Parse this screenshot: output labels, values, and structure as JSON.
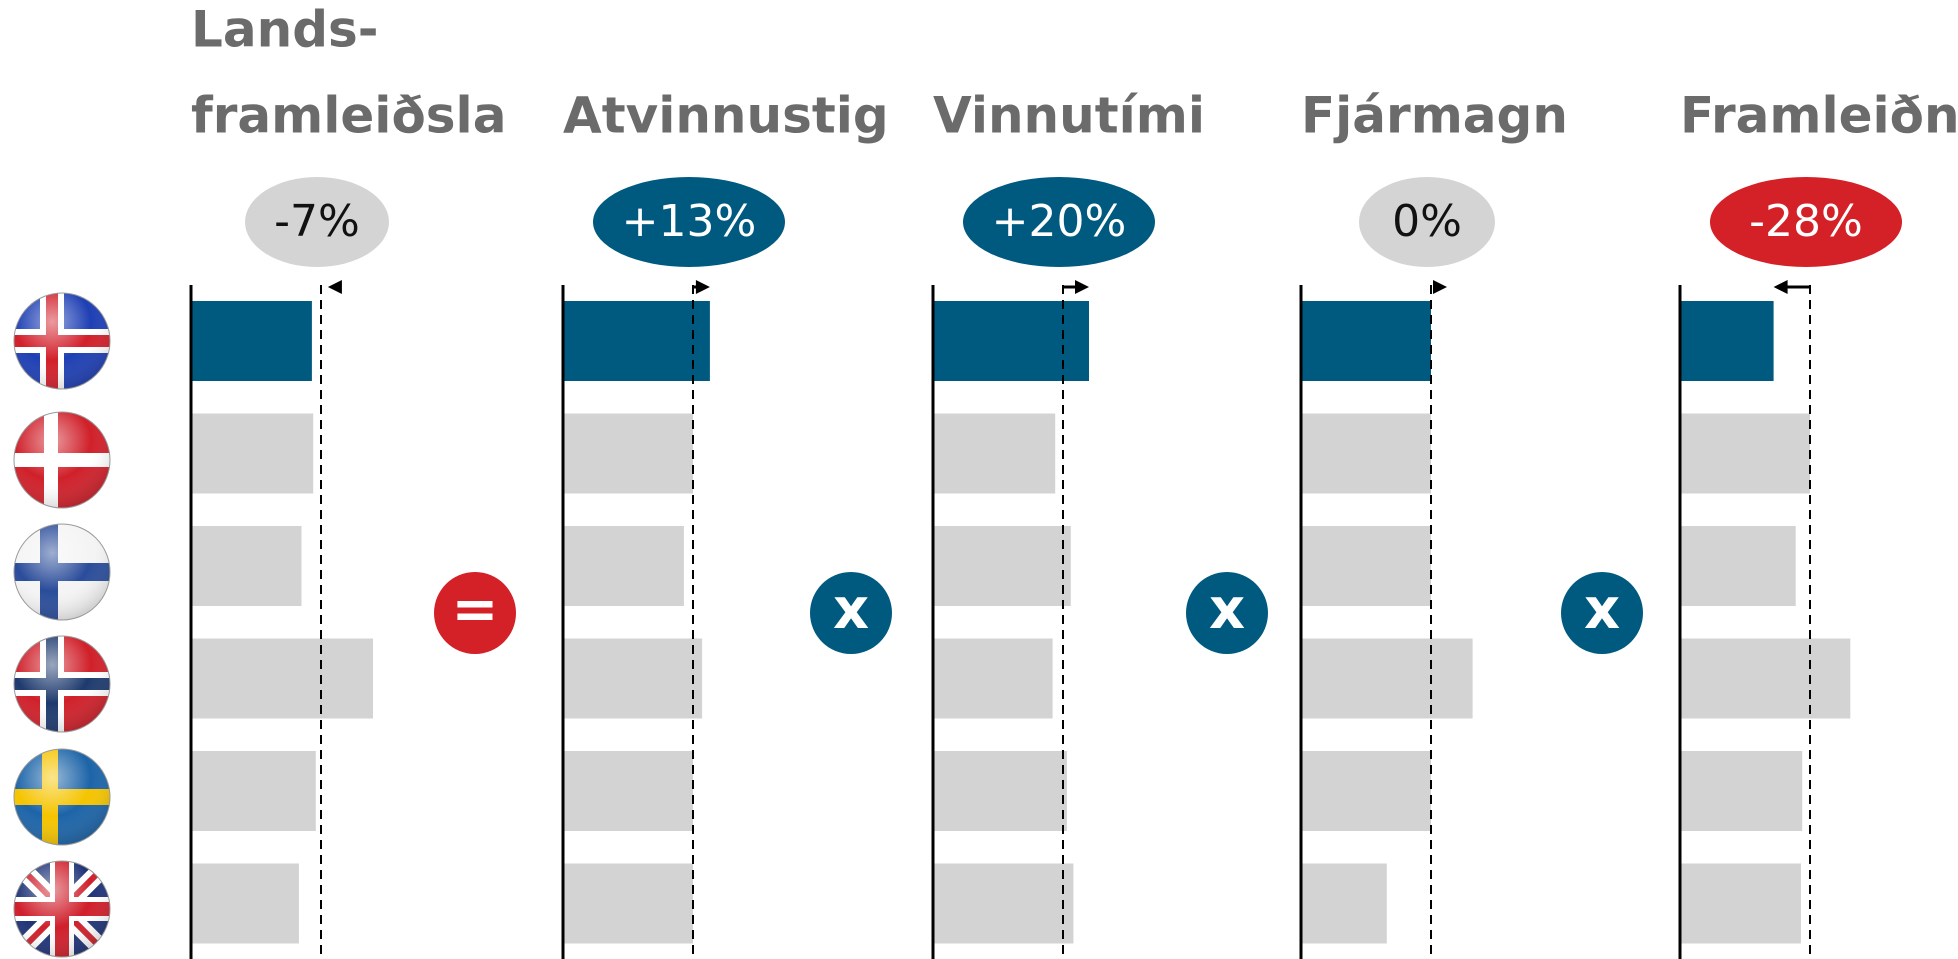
{
  "chart_data": {
    "type": "bar",
    "reference": 100,
    "xlim": [
      0,
      150
    ],
    "operators": [
      "=",
      "x",
      "x",
      "x"
    ],
    "operator_colors": [
      "#d42027",
      "#005a80",
      "#005a80",
      "#005a80"
    ],
    "highlight_color": "#005a80",
    "color": "#d3d3d3",
    "panels": [
      {
        "title": [
          "Lands-",
          "framleiðsla"
        ],
        "change": {
          "value": -7,
          "label": "-7%"
        },
        "badge_color": "#d4d4d4",
        "badge_text_color": "#111111",
        "values": [
          93,
          94,
          85,
          140,
          96,
          83
        ]
      },
      {
        "title": [
          "Atvinnustig"
        ],
        "change": {
          "value": 13,
          "label": "+13%"
        },
        "badge_color": "#005a80",
        "badge_text_color": "#ffffff",
        "values": [
          113,
          100,
          93,
          107,
          100,
          100
        ]
      },
      {
        "title": [
          "Vinnutími"
        ],
        "change": {
          "value": 20,
          "label": "+20%"
        },
        "badge_color": "#005a80",
        "badge_text_color": "#ffffff",
        "values": [
          120,
          94,
          106,
          92,
          103,
          108
        ]
      },
      {
        "title": [
          "Fjármagn"
        ],
        "change": {
          "value": 0,
          "label": "0%"
        },
        "badge_color": "#d4d4d4",
        "badge_text_color": "#111111",
        "values": [
          100,
          100,
          100,
          132,
          100,
          66
        ]
      },
      {
        "title": [
          "Framleiðni"
        ],
        "change": {
          "value": -28,
          "label": "-28%"
        },
        "badge_color": "#d42027",
        "badge_text_color": "#ffffff",
        "values": [
          72,
          100,
          89,
          131,
          94,
          93
        ]
      }
    ]
  }
}
